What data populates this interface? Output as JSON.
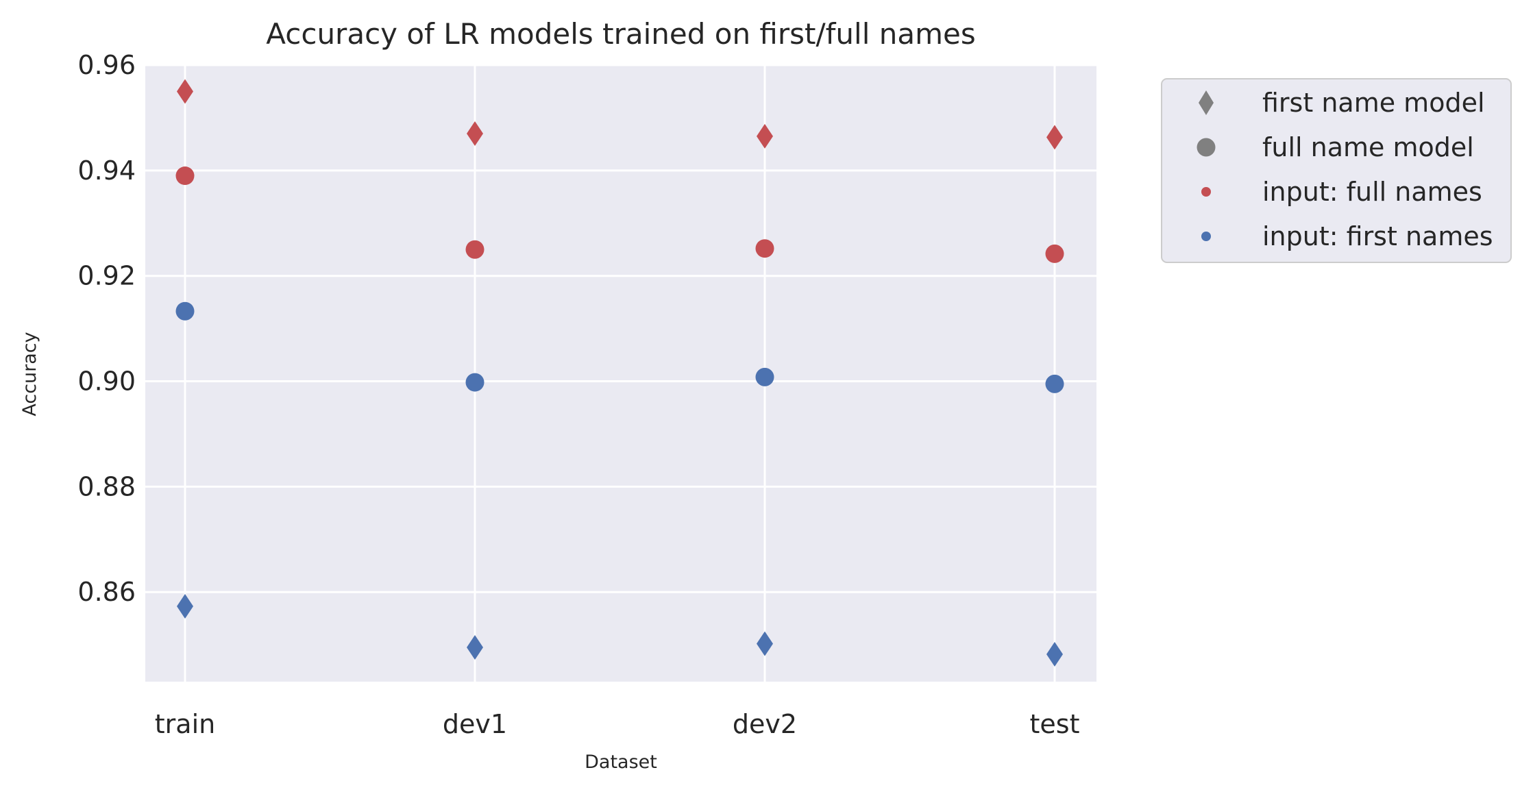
{
  "chart_data": {
    "type": "scatter",
    "title": "Accuracy of LR models trained on first/full names",
    "xlabel": "Dataset",
    "ylabel": "Accuracy",
    "categories": [
      "train",
      "dev1",
      "dev2",
      "test"
    ],
    "ylim": [
      0.843,
      0.96
    ],
    "yticks": [
      0.86,
      0.88,
      0.9,
      0.92,
      0.94,
      0.96
    ],
    "ytick_labels": [
      "0.86",
      "0.88",
      "0.90",
      "0.92",
      "0.94",
      "0.96"
    ],
    "grid": true,
    "legend_position": "outside-right-top",
    "colors": {
      "full_names_input": "#c44e52",
      "first_names_input": "#4c72b0",
      "legend_shape": "#808080",
      "plot_background": "#eaeaf2",
      "grid": "#ffffff"
    },
    "series": [
      {
        "model": "first name model",
        "input": "full names",
        "marker": "diamond",
        "color": "#c44e52",
        "values": [
          0.955,
          0.947,
          0.9465,
          0.9463
        ]
      },
      {
        "model": "full name model",
        "input": "full names",
        "marker": "circle",
        "color": "#c44e52",
        "values": [
          0.939,
          0.925,
          0.9252,
          0.9242
        ]
      },
      {
        "model": "full name model",
        "input": "first names",
        "marker": "circle",
        "color": "#4c72b0",
        "values": [
          0.9133,
          0.8998,
          0.9008,
          0.8995
        ]
      },
      {
        "model": "first name model",
        "input": "first names",
        "marker": "diamond",
        "color": "#4c72b0",
        "values": [
          0.8573,
          0.8495,
          0.8502,
          0.8482
        ]
      }
    ],
    "legend": [
      {
        "label": "first name model",
        "marker": "diamond",
        "color": "#808080"
      },
      {
        "label": "full name model",
        "marker": "circle",
        "color": "#808080"
      },
      {
        "label": "input: full names",
        "marker": "small-circle",
        "color": "#c44e52"
      },
      {
        "label": "input: first names",
        "marker": "small-circle",
        "color": "#4c72b0"
      }
    ]
  }
}
